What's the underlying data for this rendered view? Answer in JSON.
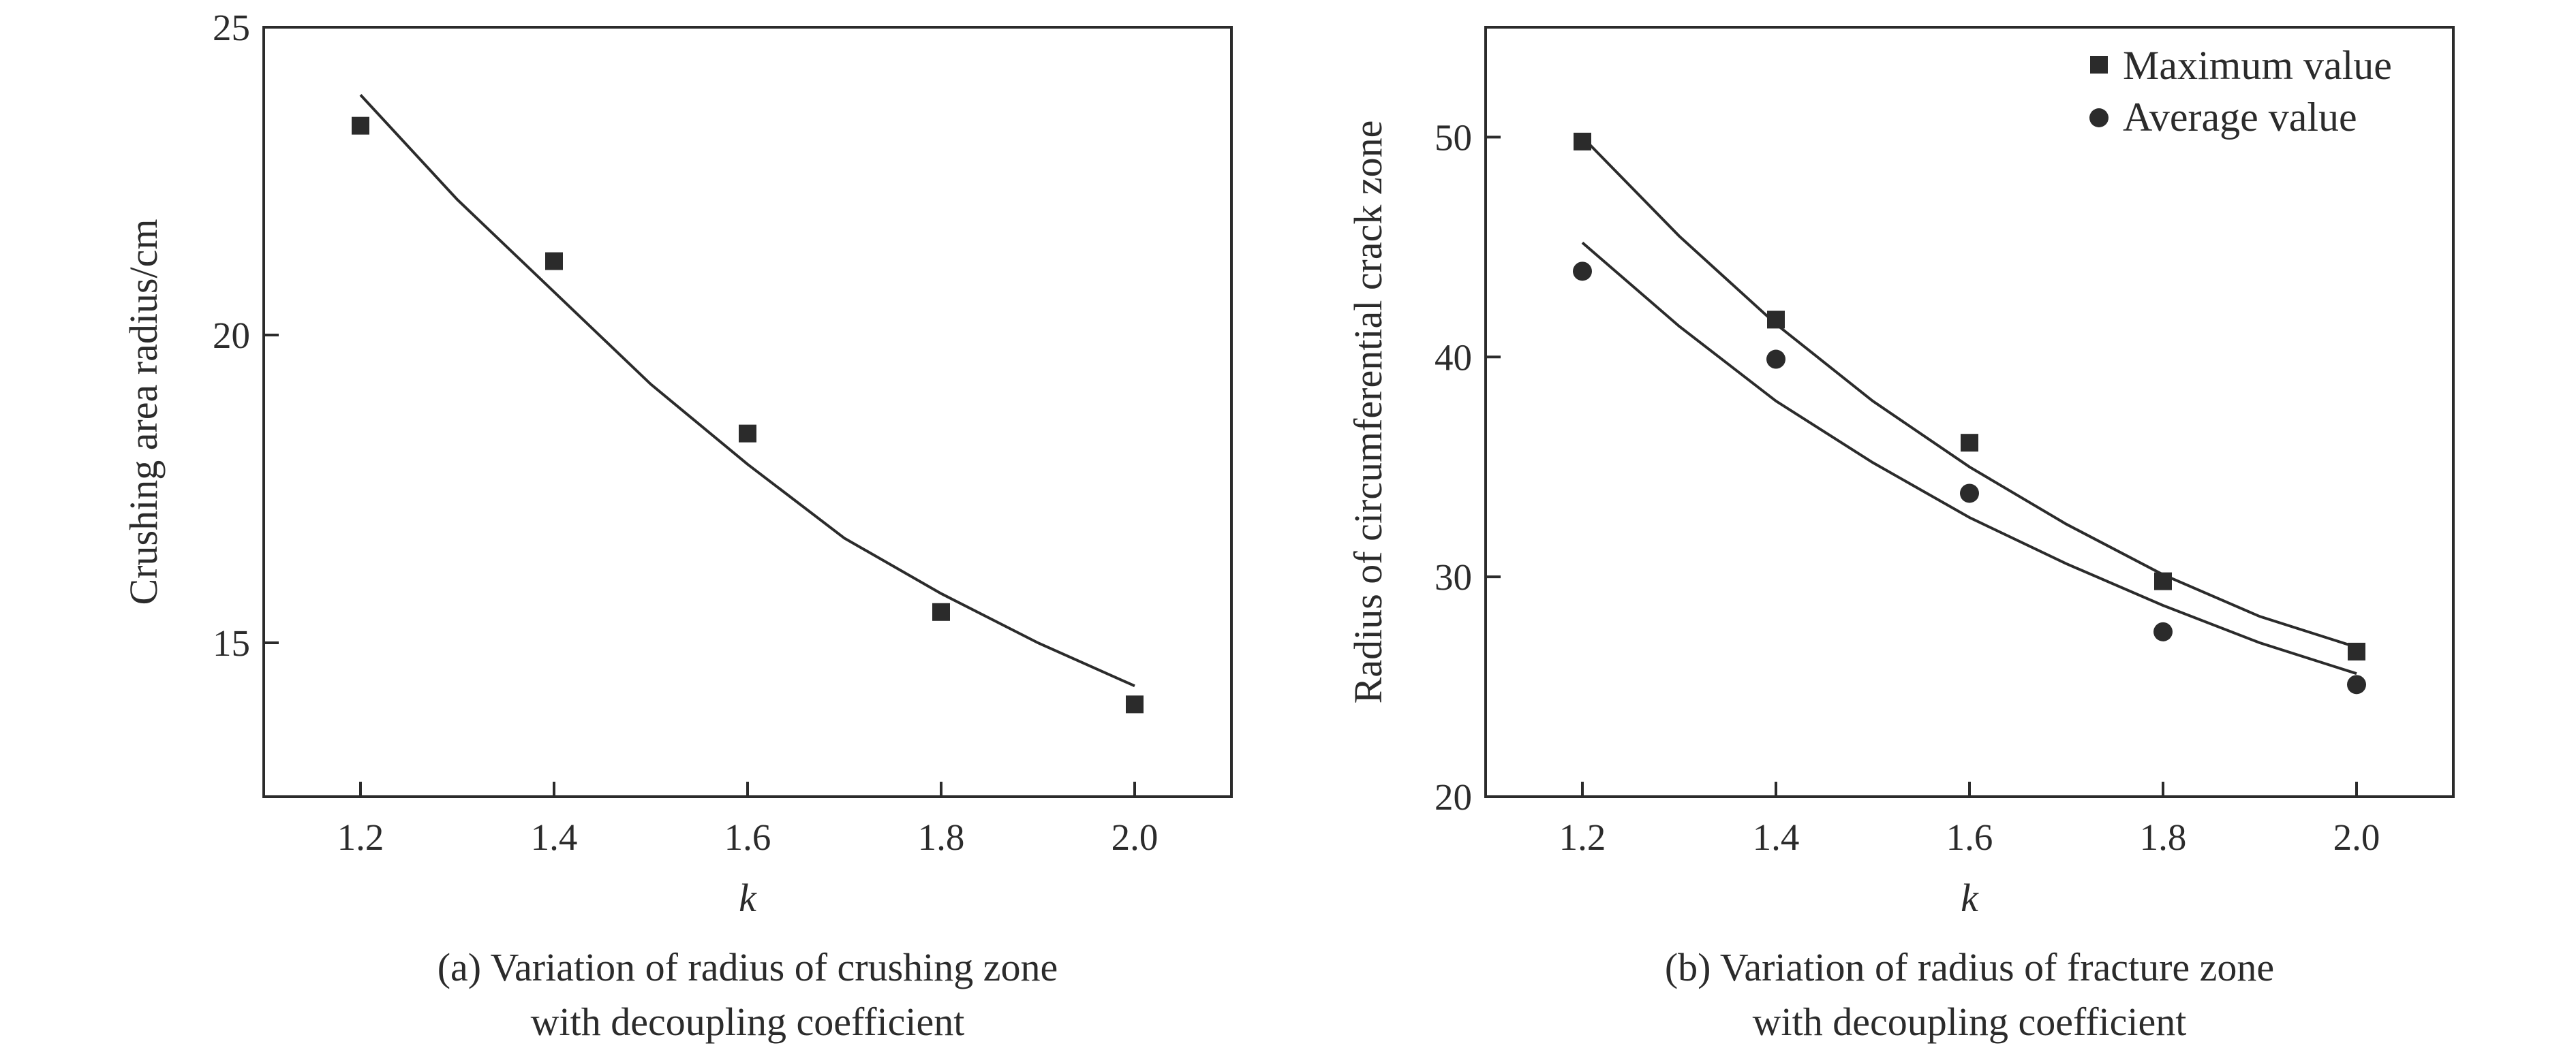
{
  "chart_data": [
    {
      "type": "scatter",
      "panel": "a",
      "xlabel": "k",
      "ylabel": "Crushing area radius/cm",
      "xlim": [
        1.1,
        2.1
      ],
      "ylim": [
        12.5,
        25
      ],
      "x_ticks": [
        "1.2",
        "1.4",
        "1.6",
        "1.8",
        "2.0"
      ],
      "y_ticks": [
        "15",
        "20",
        "25"
      ],
      "caption_lines": [
        "(a) Variation of radius of crushing zone",
        "with decoupling coefficient"
      ],
      "legend": "none",
      "grid": false,
      "series": [
        {
          "marker": "square",
          "x": [
            1.2,
            1.4,
            1.6,
            1.8,
            2.0
          ],
          "y": [
            23.4,
            21.2,
            18.4,
            15.5,
            14.0
          ],
          "fit": {
            "x": [
              1.2,
              1.3,
              1.4,
              1.5,
              1.6,
              1.7,
              1.8,
              1.9,
              2.0
            ],
            "y": [
              23.9,
              22.2,
              20.7,
              19.2,
              17.9,
              16.7,
              15.8,
              15.0,
              14.3
            ]
          }
        }
      ]
    },
    {
      "type": "scatter",
      "panel": "b",
      "xlabel": "k",
      "ylabel": "Radius of circumferential crack zone",
      "xlim": [
        1.1,
        2.1
      ],
      "ylim": [
        20,
        55
      ],
      "x_ticks": [
        "1.2",
        "1.4",
        "1.6",
        "1.8",
        "2.0"
      ],
      "y_ticks": [
        "20",
        "30",
        "40",
        "50"
      ],
      "caption_lines": [
        "(b) Variation of radius of fracture zone",
        "with decoupling coefficient"
      ],
      "legend": "top-right",
      "grid": false,
      "series": [
        {
          "name": "Maximum value",
          "marker": "square",
          "x": [
            1.2,
            1.4,
            1.6,
            1.8,
            2.0
          ],
          "y": [
            49.8,
            41.7,
            36.1,
            29.8,
            26.6
          ],
          "fit": {
            "x": [
              1.2,
              1.3,
              1.4,
              1.5,
              1.6,
              1.7,
              1.8,
              1.9,
              2.0
            ],
            "y": [
              50.0,
              45.5,
              41.5,
              38.0,
              35.0,
              32.4,
              30.1,
              28.2,
              26.8
            ]
          }
        },
        {
          "name": "Average value",
          "marker": "circle",
          "x": [
            1.2,
            1.4,
            1.6,
            1.8,
            2.0
          ],
          "y": [
            43.9,
            39.9,
            33.8,
            27.5,
            25.1
          ],
          "fit": {
            "x": [
              1.2,
              1.3,
              1.4,
              1.5,
              1.6,
              1.7,
              1.8,
              1.9,
              2.0
            ],
            "y": [
              45.2,
              41.4,
              38.0,
              35.2,
              32.7,
              30.6,
              28.7,
              27.0,
              25.6
            ]
          }
        }
      ]
    }
  ],
  "colors": {
    "ink": "#2b2b2b",
    "background": "#ffffff"
  },
  "icons": {
    "square_marker": "square-marker-icon",
    "circle_marker": "circle-marker-icon"
  }
}
